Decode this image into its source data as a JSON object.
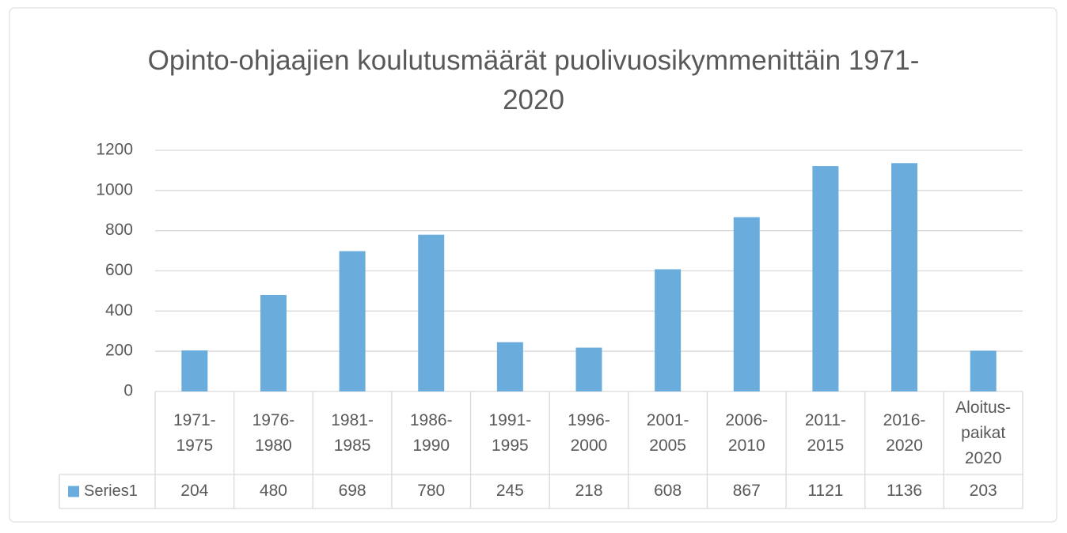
{
  "chart_data": {
    "type": "bar",
    "title": "Opinto-ohjaajien koulutusmäärät puolivuosikymmenittäin 1971-2020",
    "categories": [
      "1971-1975",
      "1976-1980",
      "1981-1985",
      "1986-1990",
      "1991-1995",
      "1996-2000",
      "2001-2005",
      "2006-2010",
      "2011-2015",
      "2016-2020",
      "Aloitus-paikat 2020"
    ],
    "series": [
      {
        "name": "Series1",
        "color": "#6aaddc",
        "values": [
          204,
          480,
          698,
          780,
          245,
          218,
          608,
          867,
          1121,
          1136,
          203
        ]
      }
    ],
    "ylim": [
      0,
      1200
    ],
    "yticks": [
      0,
      200,
      400,
      600,
      800,
      1000,
      1200
    ],
    "grid": true,
    "data_table": true
  }
}
